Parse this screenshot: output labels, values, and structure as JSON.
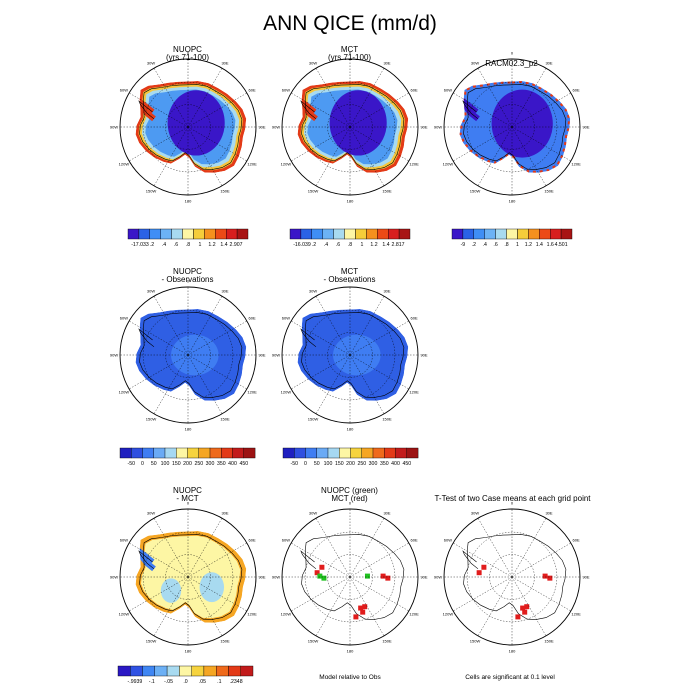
{
  "figure_title": "ANN QICE (mm/d)",
  "panel_titles": {
    "p1_line1": "NUOPC",
    "p1_line2": "(yrs 71-100)",
    "p2_line1": "MCT",
    "p2_line2": "(yrs 71-100)",
    "p3_line1": "RACM02.3_p2",
    "p4_line1": "NUOPC",
    "p4_line2": "- Observations",
    "p5_line1": "MCT",
    "p5_line2": "- Observations",
    "p7_line1": "NUOPC",
    "p7_line2": "- MCT",
    "p8_line1": "NUOPC (green)",
    "p8_line2": "MCT (red)",
    "p9_line1": "T-Test of two Case means at each grid point"
  },
  "notes": {
    "model_relative": "Model relative to Obs",
    "significance": "Cells are significant at 0.1 level"
  },
  "polar_labels": {
    "top": "0",
    "bottom": "180",
    "left": "90W",
    "right": "90E",
    "ul1": "30W",
    "ul2": "60W",
    "ur1": "30E",
    "ur2": "60E",
    "ll1": "120W",
    "ll2": "150W",
    "lr1": "120E",
    "lr2": "150E"
  },
  "chart_data": [
    {
      "type": "heatmap",
      "panel": "NUOPC (yrs 71-100)",
      "projection": "south-polar-stereographic",
      "colorbar": {
        "colors": [
          "#3a16c8",
          "#2a62e6",
          "#3f8ef5",
          "#6cb2f5",
          "#a8daf0",
          "#fdf6a4",
          "#f5cd3a",
          "#f5901e",
          "#ec4a16",
          "#d81e1e",
          "#a81414"
        ],
        "labels": [
          "-17.033",
          ".2",
          ".4",
          ".6",
          ".8",
          "1",
          "1.2",
          "1.4",
          "2.907"
        ]
      }
    },
    {
      "type": "heatmap",
      "panel": "MCT (yrs 71-100)",
      "projection": "south-polar-stereographic",
      "colorbar": {
        "colors": [
          "#3a16c8",
          "#2a62e6",
          "#3f8ef5",
          "#6cb2f5",
          "#a8daf0",
          "#fdf6a4",
          "#f5cd3a",
          "#f5901e",
          "#ec4a16",
          "#d81e1e",
          "#a81414"
        ],
        "labels": [
          "-16.039",
          ".2",
          ".4",
          ".6",
          ".8",
          "1",
          "1.2",
          "1.4",
          "2.817"
        ]
      }
    },
    {
      "type": "heatmap",
      "panel": "RACM02.3_p2",
      "projection": "south-polar-stereographic",
      "colorbar": {
        "colors": [
          "#3a16c8",
          "#2a62e6",
          "#3f8ef5",
          "#6cb2f5",
          "#a8daf0",
          "#fdf6a4",
          "#f5cd3a",
          "#f5901e",
          "#ec4a16",
          "#d81e1e",
          "#a81414"
        ],
        "labels": [
          "-9",
          ".2",
          ".4",
          ".6",
          ".8",
          "1",
          "1.2",
          "1.4",
          "1.6",
          "4.501"
        ]
      }
    },
    {
      "type": "heatmap",
      "panel": "NUOPC - Observations",
      "projection": "south-polar-stereographic",
      "colorbar": {
        "colors": [
          "#1f20c0",
          "#2f4fe0",
          "#3f7df2",
          "#6aaaf5",
          "#a6d8f2",
          "#fdf6a4",
          "#f6d33e",
          "#f5a623",
          "#ef6a1b",
          "#e33a17",
          "#c21b1b",
          "#9c1313"
        ],
        "labels": [
          "-50",
          "0",
          "50",
          "100",
          "150",
          "200",
          "250",
          "300",
          "350",
          "400",
          "450"
        ]
      }
    },
    {
      "type": "heatmap",
      "panel": "MCT - Observations",
      "projection": "south-polar-stereographic",
      "colorbar": {
        "colors": [
          "#1f20c0",
          "#2f4fe0",
          "#3f7df2",
          "#6aaaf5",
          "#a6d8f2",
          "#fdf6a4",
          "#f6d33e",
          "#f5a623",
          "#ef6a1b",
          "#e33a17",
          "#c21b1b",
          "#9c1313"
        ],
        "labels": [
          "-50",
          "0",
          "50",
          "100",
          "150",
          "200",
          "250",
          "300",
          "350",
          "400",
          "450"
        ]
      }
    },
    {
      "type": "heatmap",
      "panel": "NUOPC - MCT",
      "projection": "south-polar-stereographic",
      "colorbar": {
        "colors": [
          "#2a18c4",
          "#2f52e3",
          "#3f86f3",
          "#6cb0f5",
          "#a8daf0",
          "#fdf6a4",
          "#f6d33e",
          "#f5a623",
          "#ef6a1b",
          "#e33a17",
          "#c21b1b"
        ],
        "labels": [
          "-.9939",
          "-.1",
          "-.05",
          ".0",
          ".05",
          ".1",
          ".2348"
        ]
      }
    },
    {
      "type": "heatmap",
      "panel": "NUOPC (green) MCT (red)",
      "projection": "south-polar-stereographic"
    },
    {
      "type": "heatmap",
      "panel": "T-Test of two Case means at each grid point",
      "projection": "south-polar-stereographic"
    }
  ]
}
